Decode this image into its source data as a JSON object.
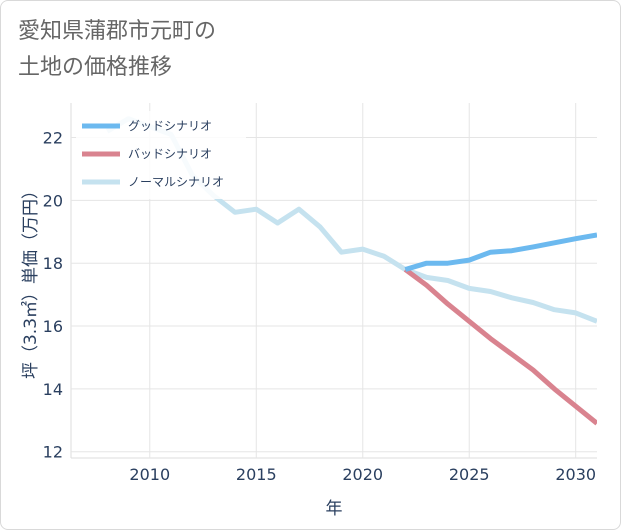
{
  "title_lines": [
    "愛知県蒲郡市元町の",
    "土地の価格推移"
  ],
  "chart_data": {
    "type": "line",
    "title": "愛知県蒲郡市元町の土地の価格推移",
    "xlabel": "年",
    "ylabel": "坪（3.3㎡）単価（万円）",
    "xlim": [
      2006.3,
      2031
    ],
    "ylim": [
      11.8,
      23.1
    ],
    "xticks": [
      2010,
      2015,
      2020,
      2025,
      2030
    ],
    "yticks": [
      12,
      14,
      16,
      18,
      20,
      22
    ],
    "grid": true,
    "legend_position": "top-left",
    "series": [
      {
        "name": "グッドシナリオ",
        "color": "#6cb9ef",
        "x": [
          2022,
          2023,
          2024,
          2025,
          2026,
          2027,
          2028,
          2029,
          2030,
          2031
        ],
        "y": [
          17.8,
          18.0,
          18.0,
          18.1,
          18.35,
          18.4,
          18.52,
          18.65,
          18.78,
          18.9
        ]
      },
      {
        "name": "バッドシナリオ",
        "color": "#d9838f",
        "x": [
          2022,
          2023,
          2024,
          2025,
          2026,
          2027,
          2028,
          2029,
          2030,
          2031
        ],
        "y": [
          17.8,
          17.3,
          16.7,
          16.15,
          15.6,
          15.1,
          14.6,
          14.0,
          13.45,
          12.9
        ]
      },
      {
        "name": "ノーマルシナリオ",
        "color": "#c5e2ef",
        "x": [
          2008,
          2009,
          2010,
          2011,
          2012,
          2013,
          2014,
          2015,
          2016,
          2017,
          2018,
          2019,
          2020,
          2021,
          2022,
          2023,
          2024,
          2025,
          2026,
          2027,
          2028,
          2029,
          2030,
          2031
        ],
        "y": [
          22.2,
          22.6,
          22.35,
          22.1,
          20.8,
          20.15,
          19.62,
          19.72,
          19.28,
          19.72,
          19.15,
          18.35,
          18.45,
          18.22,
          17.8,
          17.55,
          17.45,
          17.2,
          17.1,
          16.9,
          16.75,
          16.52,
          16.42,
          16.15
        ]
      }
    ]
  }
}
